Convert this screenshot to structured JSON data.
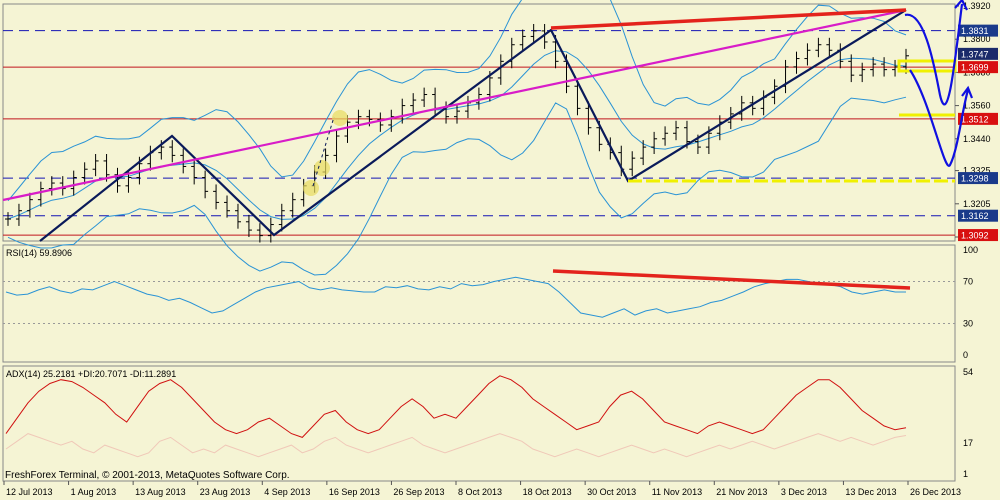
{
  "colors": {
    "background": "#f5f4d4",
    "price_bars": "#000000",
    "bollinger": "#2a93d5",
    "zigzag": "#0a1a5a",
    "trendline_magenta": "#d81cc8",
    "resistance_red": "#e3231c",
    "support_line": "#c0141c",
    "dashed_level": "#1414b4",
    "yellow_marker": "#f0f000",
    "forecast_arrow": "#1010e0",
    "rsi_line": "#2a93d5",
    "adx_line": "#d01010",
    "di_line": "#f0c8b8",
    "level_label_blue": "#1a3a8a",
    "level_label_red": "#d81010",
    "current_label": "#1a2a6a"
  },
  "chart_data": [
    {
      "type": "candlestick",
      "panel": "price",
      "instrument_levels": {
        "right_axis_ticks": [
          "1.3920",
          "1.3800",
          "1.3680",
          "1.3560",
          "1.3440",
          "1.3325",
          "1.3205",
          "1.3085"
        ],
        "level_labels": [
          {
            "value": "1.3831",
            "style": "dashed",
            "color": "blue"
          },
          {
            "value": "1.3747",
            "style": "current",
            "color": "navy"
          },
          {
            "value": "1.3699",
            "style": "solid",
            "color": "red"
          },
          {
            "value": "1.3512",
            "style": "solid",
            "color": "red"
          },
          {
            "value": "1.3298",
            "style": "dashed",
            "color": "blue"
          },
          {
            "value": "1.3162",
            "style": "dashed",
            "color": "blue"
          },
          {
            "value": "1.3092",
            "style": "solid",
            "color": "red"
          }
        ]
      },
      "x_labels": [
        "12 Jul 2013",
        "1 Aug 2013",
        "13 Aug 2013",
        "23 Aug 2013",
        "4 Sep 2013",
        "16 Sep 2013",
        "26 Sep 2013",
        "8 Oct 2013",
        "18 Oct 2013",
        "30 Oct 2013",
        "11 Nov 2013",
        "21 Nov 2013",
        "3 Dec 2013",
        "13 Dec 2013",
        "26 Dec 2013"
      ],
      "close_path": [
        1.315,
        1.318,
        1.322,
        1.326,
        1.328,
        1.326,
        1.33,
        1.333,
        1.336,
        1.331,
        1.327,
        1.33,
        1.335,
        1.339,
        1.341,
        1.338,
        1.334,
        1.33,
        1.325,
        1.321,
        1.318,
        1.314,
        1.311,
        1.309,
        1.313,
        1.318,
        1.322,
        1.327,
        1.332,
        1.338,
        1.345,
        1.35,
        1.352,
        1.351,
        1.349,
        1.352,
        1.356,
        1.358,
        1.36,
        1.355,
        1.352,
        1.354,
        1.357,
        1.36,
        1.366,
        1.372,
        1.378,
        1.381,
        1.383,
        1.379,
        1.372,
        1.363,
        1.355,
        1.348,
        1.342,
        1.339,
        1.333,
        1.337,
        1.341,
        1.344,
        1.346,
        1.348,
        1.343,
        1.341,
        1.346,
        1.35,
        1.353,
        1.357,
        1.355,
        1.359,
        1.363,
        1.37,
        1.373,
        1.376,
        1.378,
        1.376,
        1.372,
        1.367,
        1.369,
        1.371,
        1.369,
        1.37,
        1.374
      ],
      "forecast": "up-down-up"
    },
    {
      "type": "line",
      "panel": "rsi",
      "title": "RSI(14) 59.8906",
      "y_ticks": [
        "100",
        "70",
        "30",
        "0"
      ],
      "ylim": [
        0,
        100
      ],
      "values": [
        60,
        57,
        58,
        62,
        65,
        61,
        59,
        63,
        62,
        66,
        70,
        66,
        62,
        58,
        56,
        52,
        54,
        50,
        45,
        40,
        42,
        48,
        54,
        60,
        64,
        66,
        68,
        70,
        64,
        62,
        64,
        62,
        61,
        60,
        60,
        65,
        64,
        66,
        63,
        62,
        65,
        63,
        68,
        66,
        67,
        70,
        72,
        74,
        72,
        70,
        68,
        60,
        50,
        40,
        38,
        36,
        40,
        44,
        38,
        42,
        44,
        40,
        42,
        44,
        46,
        50,
        52,
        56,
        60,
        65,
        68,
        70,
        72,
        72,
        70,
        68,
        67,
        65,
        60,
        58,
        60,
        62,
        60,
        60
      ]
    },
    {
      "type": "line",
      "panel": "adx",
      "title": "ADX(14) 25.2181 +DI:20.7071 -DI:11.2891",
      "y_ticks": [
        "54",
        "17",
        "1"
      ],
      "ylim": [
        1,
        54
      ],
      "series": [
        {
          "values": [
            22,
            30,
            38,
            44,
            48,
            50,
            49,
            46,
            42,
            38,
            32,
            28,
            36,
            44,
            48,
            50,
            46,
            40,
            34,
            28,
            24,
            22,
            24,
            28,
            30,
            26,
            22,
            20,
            26,
            32,
            34,
            28,
            24,
            22,
            24,
            30,
            36,
            40,
            36,
            30,
            32,
            30,
            36,
            42,
            48,
            52,
            50,
            46,
            40,
            36,
            32,
            28,
            24,
            26,
            28,
            36,
            42,
            44,
            40,
            34,
            28,
            26,
            24,
            22,
            26,
            28,
            26,
            24,
            22,
            24,
            30,
            36,
            42,
            46,
            50,
            50,
            46,
            40,
            34,
            30,
            26,
            24,
            25
          ]
        },
        {
          "values": [
            14,
            18,
            22,
            20,
            18,
            16,
            18,
            14,
            12,
            16,
            14,
            12,
            10,
            12,
            18,
            20,
            16,
            12,
            14,
            12,
            16,
            14,
            12,
            10,
            12,
            14,
            16,
            12,
            14,
            18,
            20,
            16,
            14,
            12,
            14,
            16,
            18,
            20,
            16,
            14,
            12,
            14,
            16,
            18,
            20,
            22,
            20,
            18,
            14,
            12,
            10,
            12,
            14,
            12,
            10,
            12,
            14,
            16,
            14,
            12,
            14,
            12,
            10,
            12,
            14,
            16,
            14,
            16,
            18,
            16,
            14,
            16,
            18,
            20,
            22,
            20,
            18,
            20,
            18,
            16,
            18,
            20,
            21
          ]
        }
      ]
    }
  ],
  "footer": {
    "copyright": "FreshForex Terminal, © 2001-2013, MetaQuotes Software Corp."
  }
}
